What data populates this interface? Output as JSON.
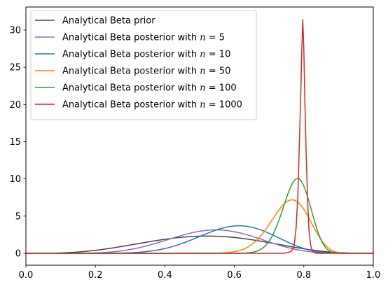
{
  "chart_data": {
    "type": "line",
    "title": "",
    "xlabel": "",
    "ylabel": "",
    "xlim": [
      0,
      1
    ],
    "ylim": [
      -1.6,
      33.1
    ],
    "x_ticks": [
      0,
      0.2,
      0.4,
      0.6,
      0.8,
      1
    ],
    "x_tick_labels": [
      "0.0",
      "0.2",
      "0.4",
      "0.6",
      "0.8",
      "1.0"
    ],
    "y_ticks": [
      0,
      5,
      10,
      15,
      20,
      25,
      30
    ],
    "y_tick_labels": [
      "0",
      "5",
      "10",
      "15",
      "20",
      "25",
      "30"
    ],
    "grid": false,
    "legend_position": "top-left",
    "series": [
      {
        "name": "Analytical Beta prior",
        "legend_prefix": "Analytical Beta prior",
        "legend_n": "",
        "legend_suffix": "",
        "color": "#444444",
        "distribution": {
          "family": "beta",
          "alpha": 4.6,
          "beta": 4.3
        }
      },
      {
        "name": "Analytical Beta posterior with n = 5",
        "legend_prefix": "Analytical Beta posterior with ",
        "legend_n": "n",
        "legend_suffix": " = 5",
        "color": "#9467bd",
        "distribution": {
          "family": "beta",
          "alpha": 8.6,
          "beta": 7.3
        }
      },
      {
        "name": "Analytical Beta posterior with n = 10",
        "legend_prefix": "Analytical Beta posterior with ",
        "legend_n": "n",
        "legend_suffix": " = 10",
        "color": "#1f77b4",
        "distribution": {
          "family": "beta",
          "alpha": 12.6,
          "beta": 8.3
        }
      },
      {
        "name": "Analytical Beta posterior with n = 50",
        "legend_prefix": "Analytical Beta posterior with ",
        "legend_n": "n",
        "legend_suffix": " = 50",
        "color": "#ff7f0e",
        "distribution": {
          "family": "beta",
          "alpha": 44.6,
          "beta": 14.3
        }
      },
      {
        "name": "Analytical Beta posterior with n = 100",
        "legend_prefix": "Analytical Beta posterior with ",
        "legend_n": "n",
        "legend_suffix": " = 100",
        "color": "#2ca02c",
        "distribution": {
          "family": "beta",
          "alpha": 84.6,
          "beta": 24.3
        }
      },
      {
        "name": "Analytical Beta posterior with n = 1000",
        "legend_prefix": "Analytical Beta posterior with ",
        "legend_n": "n",
        "legend_suffix": " = 1000",
        "color": "#d62728",
        "peak": {
          "x": 0.797,
          "y": 31.4
        },
        "points": [
          [
            0.0,
            0.0
          ],
          [
            0.74,
            0.0
          ],
          [
            0.755,
            0.1
          ],
          [
            0.765,
            0.3
          ],
          [
            0.772,
            1.0
          ],
          [
            0.778,
            3.5
          ],
          [
            0.783,
            8.0
          ],
          [
            0.787,
            14.5
          ],
          [
            0.791,
            21.0
          ],
          [
            0.794,
            27.0
          ],
          [
            0.797,
            31.4
          ],
          [
            0.8,
            27.5
          ],
          [
            0.803,
            20.5
          ],
          [
            0.807,
            13.0
          ],
          [
            0.811,
            7.0
          ],
          [
            0.815,
            3.0
          ],
          [
            0.82,
            1.0
          ],
          [
            0.826,
            0.2
          ],
          [
            0.835,
            0.0
          ],
          [
            1.0,
            0.0
          ]
        ]
      }
    ]
  }
}
